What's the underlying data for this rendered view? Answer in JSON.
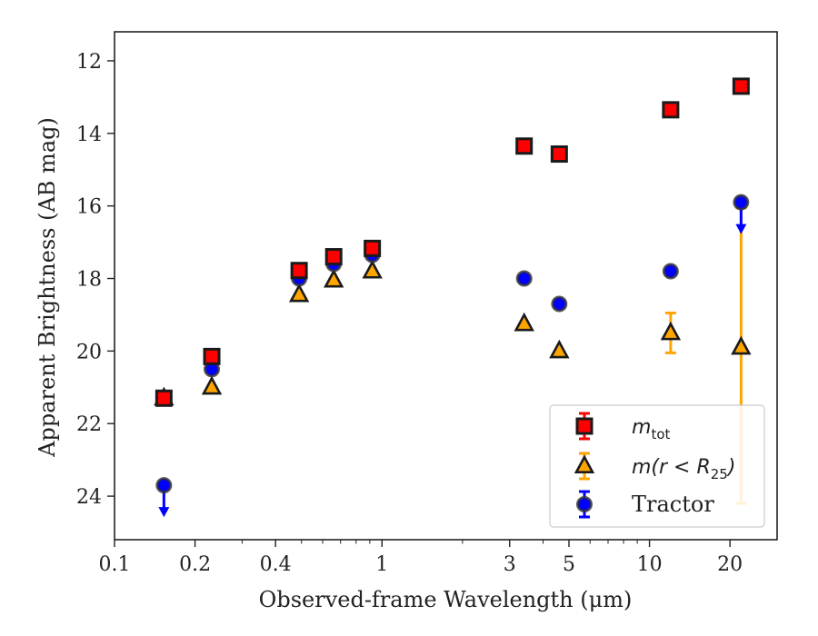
{
  "chart_data": {
    "type": "scatter",
    "xlabel": "Observed-frame Wavelength (μm)",
    "ylabel": "Apparent Brightness (AB mag)",
    "x_scale": "log",
    "y_inverted": true,
    "xlim": [
      0.1,
      30
    ],
    "ylim": [
      25.2,
      11.2
    ],
    "x_ticks": [
      {
        "value": 0.1,
        "label": "0.1"
      },
      {
        "value": 0.2,
        "label": "0.2"
      },
      {
        "value": 0.4,
        "label": "0.4"
      },
      {
        "value": 1,
        "label": "1"
      },
      {
        "value": 3,
        "label": "3"
      },
      {
        "value": 5,
        "label": "5"
      },
      {
        "value": 10,
        "label": "10"
      },
      {
        "value": 20,
        "label": "20"
      }
    ],
    "y_ticks": [
      {
        "value": 12,
        "label": "12"
      },
      {
        "value": 14,
        "label": "14"
      },
      {
        "value": 16,
        "label": "16"
      },
      {
        "value": 18,
        "label": "18"
      },
      {
        "value": 20,
        "label": "20"
      },
      {
        "value": 22,
        "label": "22"
      },
      {
        "value": 24,
        "label": "24"
      }
    ],
    "grid": false,
    "legend_position": "bottom-right",
    "series": [
      {
        "name": "m_tot",
        "legend_main": "m",
        "legend_sub": "tot",
        "marker": "square",
        "color": "#ff0000",
        "edge_color": "#1a1a1a",
        "points": [
          {
            "x": 0.153,
            "y": 21.3
          },
          {
            "x": 0.231,
            "y": 20.15
          },
          {
            "x": 0.49,
            "y": 17.78
          },
          {
            "x": 0.66,
            "y": 17.4
          },
          {
            "x": 0.92,
            "y": 17.17
          },
          {
            "x": 3.4,
            "y": 14.35
          },
          {
            "x": 4.6,
            "y": 14.57
          },
          {
            "x": 12.0,
            "y": 13.35
          },
          {
            "x": 22.0,
            "y": 12.7
          }
        ]
      },
      {
        "name": "m(r < R_25)",
        "legend_main": "m(r < R",
        "legend_sub": "25",
        "legend_close": ")",
        "marker": "triangle",
        "color": "#ffa500",
        "edge_color": "#1a1a1a",
        "points": [
          {
            "x": 0.153,
            "y": 21.3
          },
          {
            "x": 0.231,
            "y": 21.0
          },
          {
            "x": 0.49,
            "y": 18.45
          },
          {
            "x": 0.66,
            "y": 18.05
          },
          {
            "x": 0.92,
            "y": 17.8
          },
          {
            "x": 3.4,
            "y": 19.25
          },
          {
            "x": 4.6,
            "y": 20.0
          },
          {
            "x": 12.0,
            "y": 19.5,
            "err": 0.55
          },
          {
            "x": 22.0,
            "y": 19.9,
            "yerr_low": 3.85,
            "yerr_high": 4.3
          }
        ]
      },
      {
        "name": "Tractor",
        "marker": "circle",
        "color": "#0000ff",
        "edge_color": "#333333",
        "points": [
          {
            "x": 0.153,
            "y": 23.7,
            "upper_limit": true
          },
          {
            "x": 0.231,
            "y": 20.5
          },
          {
            "x": 0.49,
            "y": 18.0
          },
          {
            "x": 0.66,
            "y": 17.6
          },
          {
            "x": 0.92,
            "y": 17.35
          },
          {
            "x": 3.4,
            "y": 18.0
          },
          {
            "x": 4.6,
            "y": 18.7
          },
          {
            "x": 12.0,
            "y": 17.8
          },
          {
            "x": 22.0,
            "y": 15.9,
            "upper_limit": true
          }
        ]
      }
    ]
  }
}
